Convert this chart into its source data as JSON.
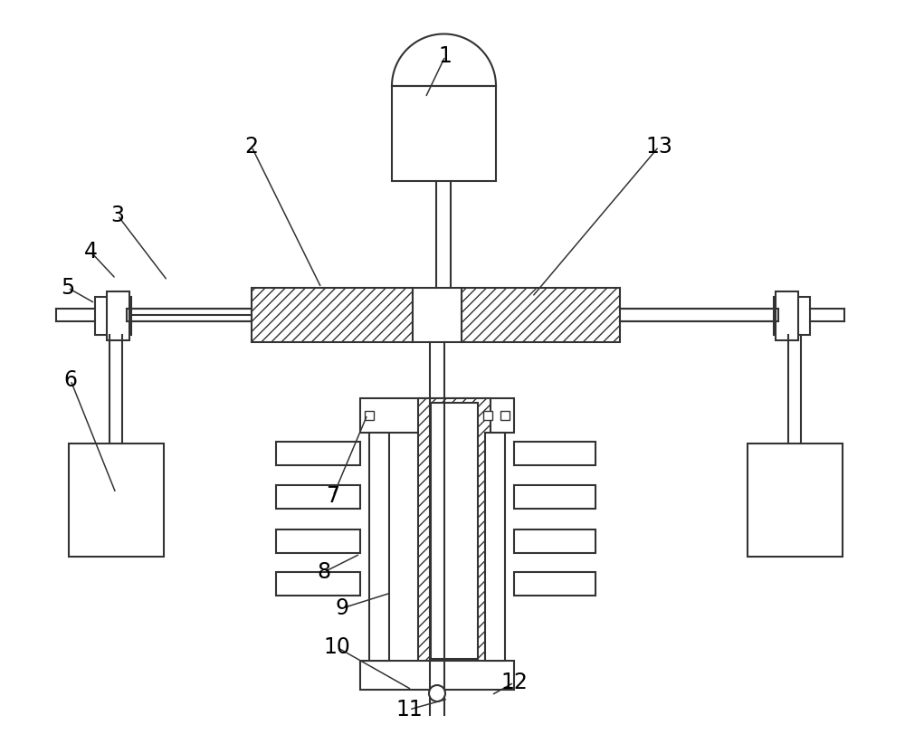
{
  "bg_color": "#ffffff",
  "line_color": "#333333",
  "fig_width": 10.0,
  "fig_height": 8.22,
  "lw": 1.5,
  "label_fontsize": 17,
  "labels": [
    [
      "1",
      492,
      62,
      470,
      108
    ],
    [
      "2",
      278,
      162,
      355,
      318
    ],
    [
      "3",
      130,
      238,
      185,
      310
    ],
    [
      "4",
      100,
      278,
      128,
      308
    ],
    [
      "5",
      75,
      318,
      105,
      335
    ],
    [
      "6",
      78,
      420,
      128,
      545
    ],
    [
      "7",
      368,
      548,
      406,
      458
    ],
    [
      "8",
      358,
      632,
      398,
      612
    ],
    [
      "9",
      378,
      672,
      432,
      655
    ],
    [
      "10",
      372,
      715,
      455,
      762
    ],
    [
      "11",
      452,
      784,
      495,
      772
    ],
    [
      "12",
      568,
      754,
      543,
      768
    ],
    [
      "13",
      728,
      162,
      588,
      328
    ]
  ]
}
